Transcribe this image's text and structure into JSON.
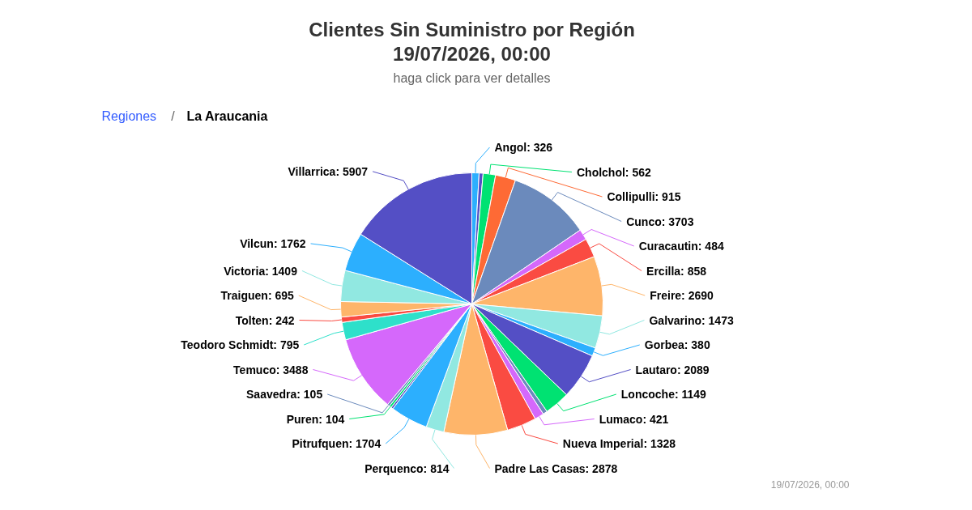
{
  "chart_data": {
    "type": "pie",
    "title": "Clientes Sin Suministro por Región\n19/07/2026, 00:00",
    "subtitle": "haga click para ver detalles",
    "annotations": [
      "Regiones",
      "/",
      "La Araucania",
      "19/07/2026, 00:00"
    ],
    "value_labels": [
      "Angol: 326",
      null,
      "Cholchol: 562",
      "Collipulli: 915",
      "Cunco: 3703",
      "Curacautin: 484",
      "Ercilla: 858",
      "Freire: 2690",
      "Galvarino: 1473",
      "Gorbea: 380",
      "Lautaro: 2089",
      "Loncoche: 1149",
      null,
      "Lumaco: 421",
      "Nueva Imperial: 1328",
      "Padre Las Casas: 2878",
      "Perquenco: 814",
      "Pitrufquen: 1704",
      null,
      "Puren: 104",
      "Saavedra: 105",
      "Temuco: 3488",
      "Teodoro Schmidt: 795",
      "Tolten: 242",
      "Traiguen: 695",
      "Victoria: 1409",
      "Vilcun: 1762",
      "Villarrica: 5907"
    ],
    "categories": [
      null,
      null,
      null,
      null,
      null,
      null,
      null,
      null,
      null,
      null,
      null,
      null,
      null,
      null,
      null,
      null,
      null,
      null,
      null,
      null,
      null,
      null,
      null,
      null,
      null,
      null,
      null,
      null
    ],
    "values": [
      326,
      180,
      562,
      915,
      3703,
      484,
      858,
      2690,
      1473,
      380,
      2089,
      1149,
      200,
      421,
      1328,
      2878,
      814,
      1704,
      90,
      104,
      105,
      3488,
      795,
      242,
      695,
      1409,
      1762,
      5907
    ],
    "colors": [
      "#2caffe",
      "#544fc5",
      "#00e272",
      "#fe6a35",
      "#6b8abc",
      "#d568fb",
      "#fa4b42",
      "#feb56a",
      "#91e8e1",
      "#2caffe",
      "#544fc5",
      "#00e272",
      "#6b8abc",
      "#d568fb",
      "#fa4b42",
      "#feb56a",
      "#91e8e1",
      "#2caffe",
      "#544fc5",
      "#00e272",
      "#6b8abc",
      "#d568fb",
      "#2ee0ca",
      "#fa4b42",
      "#feb56a",
      "#91e8e1",
      "#2caffe",
      "#544fc5"
    ]
  }
}
